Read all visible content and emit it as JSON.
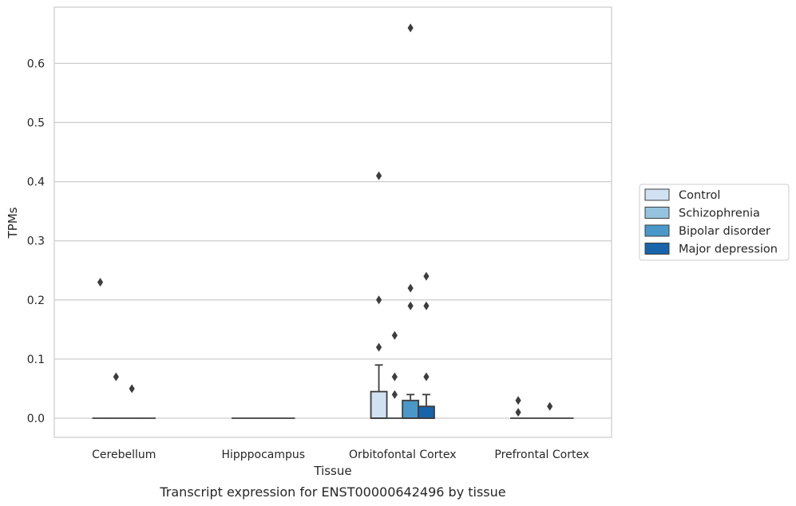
{
  "chart_data": {
    "type": "box",
    "caption": "Transcript expression for ENST00000642496 by tissue",
    "xlabel": "Tissue",
    "ylabel": "TPMs",
    "ylim": [
      -0.033,
      0.695
    ],
    "yticks": [
      0.0,
      0.1,
      0.2,
      0.3,
      0.4,
      0.5,
      0.6
    ],
    "ytick_labels": [
      "0.0",
      "0.1",
      "0.2",
      "0.3",
      "0.4",
      "0.5",
      "0.6"
    ],
    "grid": true,
    "legend_position": "right",
    "categories": [
      "Cerebellum",
      "Hipppocampus",
      "Orbitofontal Cortex",
      "Prefrontal Cortex"
    ],
    "series": [
      {
        "name": "Control",
        "color": "#d0e1f2",
        "boxes": [
          {
            "q1": 0,
            "median": 0,
            "q3": 0,
            "whisker_low": 0,
            "whisker_high": 0,
            "outliers": [
              0.23
            ]
          },
          {
            "q1": 0,
            "median": 0,
            "q3": 0,
            "whisker_low": 0,
            "whisker_high": 0,
            "outliers": []
          },
          {
            "q1": 0,
            "median": 0,
            "q3": 0.045,
            "whisker_low": 0,
            "whisker_high": 0.09,
            "outliers": [
              0.41,
              0.2,
              0.12
            ]
          },
          {
            "q1": 0,
            "median": 0,
            "q3": 0,
            "whisker_low": 0,
            "whisker_high": 0,
            "outliers": [
              0.03,
              0.01
            ]
          }
        ]
      },
      {
        "name": "Schizophrenia",
        "color": "#94c4df",
        "boxes": [
          {
            "q1": 0,
            "median": 0,
            "q3": 0,
            "whisker_low": 0,
            "whisker_high": 0,
            "outliers": [
              0.07
            ]
          },
          {
            "q1": 0,
            "median": 0,
            "q3": 0,
            "whisker_low": 0,
            "whisker_high": 0,
            "outliers": []
          },
          {
            "q1": 0,
            "median": 0,
            "q3": 0,
            "whisker_low": 0,
            "whisker_high": 0,
            "outliers": [
              0.14,
              0.07,
              0.04
            ]
          },
          {
            "q1": 0,
            "median": 0,
            "q3": 0,
            "whisker_low": 0,
            "whisker_high": 0,
            "outliers": []
          }
        ]
      },
      {
        "name": "Bipolar disorder",
        "color": "#4a98c9",
        "boxes": [
          {
            "q1": 0,
            "median": 0,
            "q3": 0,
            "whisker_low": 0,
            "whisker_high": 0,
            "outliers": [
              0.05
            ]
          },
          {
            "q1": 0,
            "median": 0,
            "q3": 0,
            "whisker_low": 0,
            "whisker_high": 0,
            "outliers": []
          },
          {
            "q1": 0,
            "median": 0,
            "q3": 0.03,
            "whisker_low": 0,
            "whisker_high": 0.04,
            "outliers": [
              0.66,
              0.22,
              0.19
            ]
          },
          {
            "q1": 0,
            "median": 0,
            "q3": 0,
            "whisker_low": 0,
            "whisker_high": 0,
            "outliers": [
              0.02
            ]
          }
        ]
      },
      {
        "name": "Major depression",
        "color": "#1764ab",
        "boxes": [
          {
            "q1": 0,
            "median": 0,
            "q3": 0,
            "whisker_low": 0,
            "whisker_high": 0,
            "outliers": []
          },
          {
            "q1": 0,
            "median": 0,
            "q3": 0,
            "whisker_low": 0,
            "whisker_high": 0,
            "outliers": []
          },
          {
            "q1": 0,
            "median": 0,
            "q3": 0.02,
            "whisker_low": 0,
            "whisker_high": 0.04,
            "outliers": [
              0.24,
              0.19,
              0.07
            ]
          },
          {
            "q1": 0,
            "median": 0,
            "q3": 0,
            "whisker_low": 0,
            "whisker_high": 0,
            "outliers": []
          }
        ]
      }
    ]
  }
}
